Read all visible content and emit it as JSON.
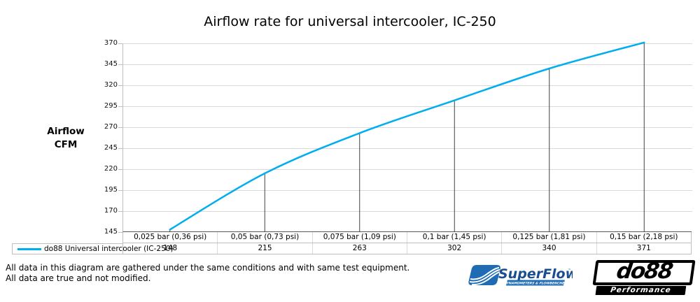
{
  "title": "Airflow rate for universal intercooler, IC-250",
  "y_axis_title": {
    "line1": "Airflow",
    "line2": "CFM"
  },
  "legend": {
    "label": "do88 Universal intercooler (IC-250)",
    "line_color": "#00AEEF"
  },
  "footer": {
    "line1": "All data in this diagram are gathered under the same conditions and with same test equipment.",
    "line2": "All data are true and not modified."
  },
  "logos": {
    "superflow": {
      "name": "SuperFlow",
      "trademark": "™",
      "tagline": "DYNAMOMETERS & FLOWBENCHES",
      "icon_color": "#1f6cb4",
      "text_color": "#1b4e8e"
    },
    "do88": {
      "name": "do88",
      "tagline": "Performance"
    }
  },
  "chart_data": {
    "type": "line",
    "title": "Airflow rate for universal intercooler, IC-250",
    "xlabel": "",
    "ylabel": "Airflow CFM",
    "categories": [
      "0,025 bar (0,36 psi)",
      "0,05 bar (0,73 psi)",
      "0,075 bar (1,09 psi)",
      "0,1 bar (1,45 psi)",
      "0,125 bar (1,81 psi)",
      "0,15 bar (2,18 psi)"
    ],
    "series": [
      {
        "name": "do88 Universal intercooler (IC-250)",
        "values": [
          148,
          215,
          263,
          302,
          340,
          371
        ],
        "color": "#00AEEF"
      }
    ],
    "ylim": [
      145,
      370
    ],
    "yticks": [
      370,
      345,
      320,
      295,
      270,
      245,
      220,
      195,
      170,
      145
    ],
    "grid": true,
    "drop_lines": true,
    "smoothed": true,
    "legend_position": "bottom-left table",
    "data_table": true
  }
}
